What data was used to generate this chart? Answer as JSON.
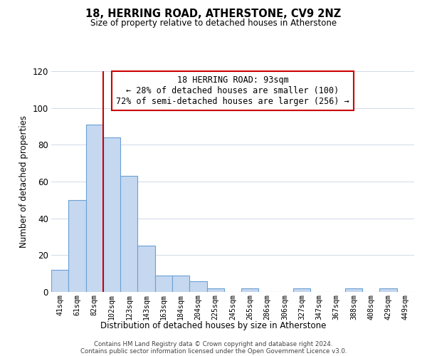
{
  "title": "18, HERRING ROAD, ATHERSTONE, CV9 2NZ",
  "subtitle": "Size of property relative to detached houses in Atherstone",
  "xlabel": "Distribution of detached houses by size in Atherstone",
  "ylabel": "Number of detached properties",
  "bar_labels": [
    "41sqm",
    "61sqm",
    "82sqm",
    "102sqm",
    "123sqm",
    "143sqm",
    "163sqm",
    "184sqm",
    "204sqm",
    "225sqm",
    "245sqm",
    "265sqm",
    "286sqm",
    "306sqm",
    "327sqm",
    "347sqm",
    "367sqm",
    "388sqm",
    "408sqm",
    "429sqm",
    "449sqm"
  ],
  "bar_values": [
    12,
    50,
    91,
    84,
    63,
    25,
    9,
    9,
    6,
    2,
    0,
    2,
    0,
    0,
    2,
    0,
    0,
    2,
    0,
    2,
    0
  ],
  "bar_color": "#c5d8f0",
  "bar_edge_color": "#6aa0d4",
  "vline_x_index": 2,
  "vline_color": "#cc0000",
  "ylim": [
    0,
    120
  ],
  "yticks": [
    0,
    20,
    40,
    60,
    80,
    100,
    120
  ],
  "annotation_title": "18 HERRING ROAD: 93sqm",
  "annotation_line1": "← 28% of detached houses are smaller (100)",
  "annotation_line2": "72% of semi-detached houses are larger (256) →",
  "annotation_box_color": "#ffffff",
  "annotation_box_edge": "#cc0000",
  "footer_line1": "Contains HM Land Registry data © Crown copyright and database right 2024.",
  "footer_line2": "Contains public sector information licensed under the Open Government Licence v3.0.",
  "background_color": "#ffffff",
  "grid_color": "#d0dae8"
}
